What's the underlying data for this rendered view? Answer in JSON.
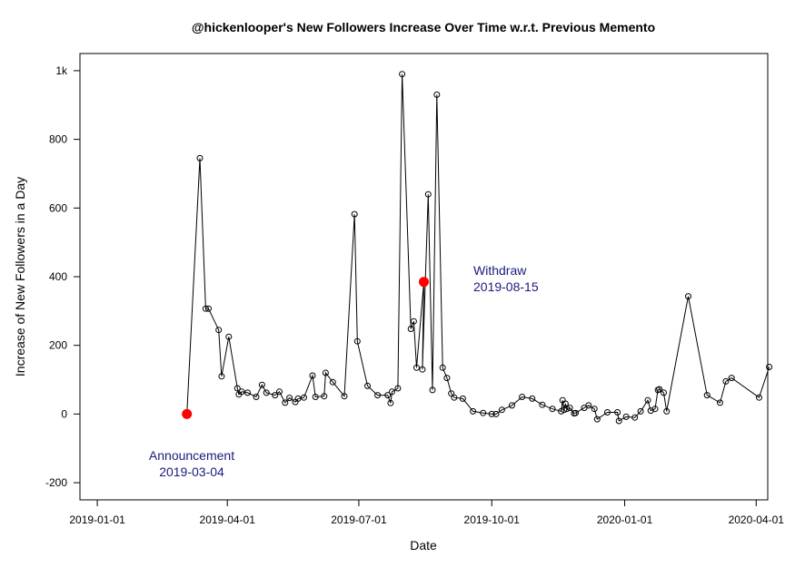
{
  "chart_data": {
    "type": "line",
    "title": "@hickenlooper's New Followers Increase Over Time w.r.t. Previous Memento",
    "xlabel": "Date",
    "ylabel": "Increase of New Followers in a Day",
    "x_axis_type": "date",
    "xlim": [
      "2018-12-20",
      "2020-04-09"
    ],
    "ylim": [
      -250,
      1050
    ],
    "x_ticks": [
      "2019-01-01",
      "2019-04-01",
      "2019-07-01",
      "2019-10-01",
      "2020-01-01",
      "2020-04-01"
    ],
    "y_ticks": [
      -200,
      0,
      200,
      400,
      600,
      800,
      1000
    ],
    "y_tick_labels": [
      "-200",
      "0",
      "200",
      "400",
      "600",
      "800",
      "1k"
    ],
    "grid": false,
    "colors": {
      "line": "#000000",
      "marker": "#000000",
      "highlight": "#ff0000",
      "annotation": "#1a1a7a"
    },
    "series": [
      {
        "points": [
          [
            "2019-03-04",
            0
          ],
          [
            "2019-03-13",
            745
          ],
          [
            "2019-03-17",
            307
          ],
          [
            "2019-03-19",
            307
          ],
          [
            "2019-03-26",
            245
          ],
          [
            "2019-03-28",
            110
          ],
          [
            "2019-04-02",
            225
          ],
          [
            "2019-04-08",
            75
          ],
          [
            "2019-04-09",
            57
          ],
          [
            "2019-04-11",
            65
          ],
          [
            "2019-04-15",
            62
          ],
          [
            "2019-04-21",
            50
          ],
          [
            "2019-04-25",
            85
          ],
          [
            "2019-04-28",
            62
          ],
          [
            "2019-05-04",
            55
          ],
          [
            "2019-05-07",
            65
          ],
          [
            "2019-05-11",
            33
          ],
          [
            "2019-05-14",
            47
          ],
          [
            "2019-05-18",
            35
          ],
          [
            "2019-05-20",
            45
          ],
          [
            "2019-05-24",
            48
          ],
          [
            "2019-05-30",
            112
          ],
          [
            "2019-06-01",
            50
          ],
          [
            "2019-06-07",
            52
          ],
          [
            "2019-06-08",
            120
          ],
          [
            "2019-06-13",
            93
          ],
          [
            "2019-06-21",
            52
          ],
          [
            "2019-06-28",
            582
          ],
          [
            "2019-06-30",
            212
          ],
          [
            "2019-07-07",
            82
          ],
          [
            "2019-07-14",
            55
          ],
          [
            "2019-07-21",
            55
          ],
          [
            "2019-07-23",
            32
          ],
          [
            "2019-07-24",
            65
          ],
          [
            "2019-07-28",
            75
          ],
          [
            "2019-07-31",
            990
          ],
          [
            "2019-08-06",
            248
          ],
          [
            "2019-08-08",
            270
          ],
          [
            "2019-08-10",
            135
          ],
          [
            "2019-08-15",
            385
          ],
          [
            "2019-08-14",
            130
          ],
          [
            "2019-08-18",
            640
          ],
          [
            "2019-08-21",
            70
          ],
          [
            "2019-08-24",
            930
          ],
          [
            "2019-08-28",
            135
          ],
          [
            "2019-08-31",
            105
          ],
          [
            "2019-09-03",
            60
          ],
          [
            "2019-09-05",
            48
          ],
          [
            "2019-09-11",
            45
          ],
          [
            "2019-09-18",
            8
          ],
          [
            "2019-09-25",
            3
          ],
          [
            "2019-10-01",
            0
          ],
          [
            "2019-10-04",
            0
          ],
          [
            "2019-10-08",
            12
          ],
          [
            "2019-10-15",
            25
          ],
          [
            "2019-10-22",
            50
          ],
          [
            "2019-10-29",
            45
          ],
          [
            "2019-11-05",
            27
          ],
          [
            "2019-11-12",
            15
          ],
          [
            "2019-11-18",
            8
          ],
          [
            "2019-11-19",
            40
          ],
          [
            "2019-11-20",
            12
          ],
          [
            "2019-11-21",
            30
          ],
          [
            "2019-11-22",
            15
          ],
          [
            "2019-11-24",
            18
          ],
          [
            "2019-11-27",
            2
          ],
          [
            "2019-11-28",
            3
          ],
          [
            "2019-12-04",
            18
          ],
          [
            "2019-12-07",
            25
          ],
          [
            "2019-12-11",
            15
          ],
          [
            "2019-12-13",
            -15
          ],
          [
            "2019-12-20",
            5
          ],
          [
            "2019-12-27",
            5
          ],
          [
            "2019-12-28",
            -20
          ],
          [
            "2020-01-02",
            -8
          ],
          [
            "2020-01-08",
            -10
          ],
          [
            "2020-01-12",
            8
          ],
          [
            "2020-01-17",
            40
          ],
          [
            "2020-01-19",
            10
          ],
          [
            "2020-01-22",
            15
          ],
          [
            "2020-01-24",
            70
          ],
          [
            "2020-01-25",
            72
          ],
          [
            "2020-01-28",
            62
          ],
          [
            "2020-01-30",
            8
          ],
          [
            "2020-02-14",
            343
          ],
          [
            "2020-02-27",
            55
          ],
          [
            "2020-03-07",
            33
          ],
          [
            "2020-03-11",
            95
          ],
          [
            "2020-03-15",
            105
          ],
          [
            "2020-04-03",
            48
          ],
          [
            "2020-04-10",
            137
          ]
        ]
      }
    ],
    "highlights": [
      {
        "date": "2019-03-04",
        "value": 0
      },
      {
        "date": "2019-08-15",
        "value": 385
      }
    ],
    "annotations": [
      {
        "line1": "Announcement",
        "line2": "2019-03-04"
      },
      {
        "line1": "Withdraw",
        "line2": "2019-08-15"
      }
    ]
  }
}
